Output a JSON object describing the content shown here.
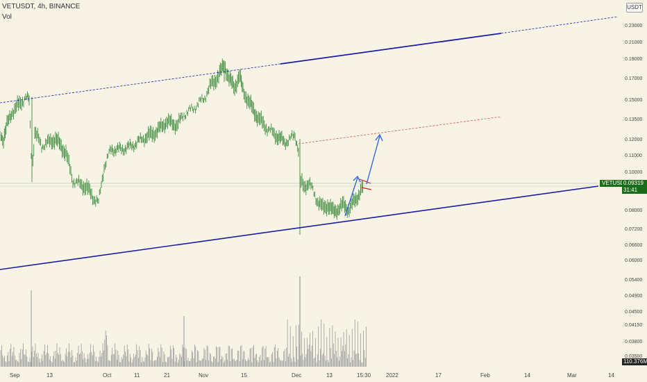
{
  "header": {
    "title": "VETUSDT, 4h, BINANCE",
    "vol_label": "Vol"
  },
  "currency_button": "USDT",
  "price_badge": {
    "symbol": "VETUSDT",
    "price": "0.09319",
    "countdown": "31:41"
  },
  "volume_badge": "110.376M",
  "price_axis": [
    "0.23000",
    "0.21000",
    "0.19000",
    "0.17000",
    "0.15000",
    "0.13500",
    "0.12000",
    "0.11000",
    "0.10000",
    "0.08000",
    "0.07200",
    "0.06600",
    "0.06000",
    "0.05400",
    "0.04900",
    "0.04500",
    "0.04150",
    "0.03800",
    "0.03500"
  ],
  "time_axis": [
    "Sep",
    "13",
    "Oct",
    "11",
    "21",
    "Nov",
    "15",
    "Dec",
    "13",
    "15:30",
    "2022",
    "17",
    "Feb",
    "14",
    "Mar",
    "14"
  ],
  "colors": {
    "background": "#f7f4e6",
    "candle": "#3a8a3a",
    "channel": "#1a1aaa",
    "mid_channel": "#e05050",
    "arrow": "#3366dd",
    "flag": "#cc2222",
    "volume": "#999999"
  },
  "chart_data": {
    "type": "candlestick",
    "symbol": "VETUSDT",
    "interval": "4h",
    "exchange": "BINANCE",
    "price_scale": "log",
    "last_price": 0.09319,
    "y_ticks": [
      0.23,
      0.21,
      0.19,
      0.17,
      0.15,
      0.135,
      0.12,
      0.11,
      0.1,
      0.08,
      0.072,
      0.066,
      0.06,
      0.054,
      0.049,
      0.045,
      0.0415,
      0.038,
      0.035
    ],
    "x_ticks": [
      "Sep",
      "13",
      "Oct",
      "11",
      "21",
      "Nov",
      "15",
      "Dec",
      "13",
      "15:30",
      "2022",
      "17",
      "Feb",
      "14",
      "Mar",
      "14"
    ],
    "price_path": [
      {
        "x": "Sep 1",
        "close": 0.135
      },
      {
        "x": "Sep 7",
        "close": 0.156
      },
      {
        "x": "Sep 8",
        "close": 0.105
      },
      {
        "x": "Sep 13",
        "close": 0.125
      },
      {
        "x": "Sep 20",
        "close": 0.112
      },
      {
        "x": "Sep 24",
        "close": 0.09
      },
      {
        "x": "Sep 29",
        "close": 0.085
      },
      {
        "x": "Oct 1",
        "close": 0.11
      },
      {
        "x": "Oct 11",
        "close": 0.12
      },
      {
        "x": "Oct 21",
        "close": 0.135
      },
      {
        "x": "Oct 27",
        "close": 0.13
      },
      {
        "x": "Nov 8",
        "close": 0.18
      },
      {
        "x": "Nov 11",
        "close": 0.17
      },
      {
        "x": "Nov 15",
        "close": 0.145
      },
      {
        "x": "Nov 25",
        "close": 0.13
      },
      {
        "x": "Dec 2",
        "close": 0.12
      },
      {
        "x": "Dec 4",
        "close": 0.092
      },
      {
        "x": "Dec 6",
        "close": 0.085
      },
      {
        "x": "Dec 13",
        "close": 0.077
      },
      {
        "x": "Dec 20",
        "close": 0.08
      },
      {
        "x": "Dec 26",
        "close": 0.093
      }
    ],
    "drawings": [
      {
        "type": "trendline",
        "name": "lower-channel",
        "from": {
          "x": "Aug 28",
          "y": 0.058
        },
        "to": {
          "x": "Mar 8",
          "y": 0.093
        }
      },
      {
        "type": "trendline",
        "name": "upper-channel",
        "from": {
          "x": "Aug 28",
          "y": 0.15
        },
        "to": {
          "x": "Mar 8",
          "y": 0.24
        },
        "solid_from": "Dec 1",
        "solid_to": "Feb 5"
      },
      {
        "type": "trendline",
        "name": "mid-channel",
        "from": {
          "x": "Dec 3",
          "y": 0.12
        },
        "to": {
          "x": "Feb 5",
          "y": 0.135
        }
      },
      {
        "type": "arrow",
        "from": {
          "x": "Dec 18",
          "y": 0.077
        },
        "to": {
          "x": "Dec 21",
          "y": 0.099
        }
      },
      {
        "type": "arrow",
        "from": {
          "x": "Dec 22",
          "y": 0.099
        },
        "to": {
          "x": "Dec 29",
          "y": 0.122
        }
      },
      {
        "type": "flag",
        "from": "Dec 25",
        "to": "Dec 29",
        "upper": [
          0.097,
          0.092
        ],
        "lower": [
          0.093,
          0.09
        ]
      }
    ],
    "volume_peak": {
      "x": "Dec 4",
      "label": "spike"
    }
  }
}
